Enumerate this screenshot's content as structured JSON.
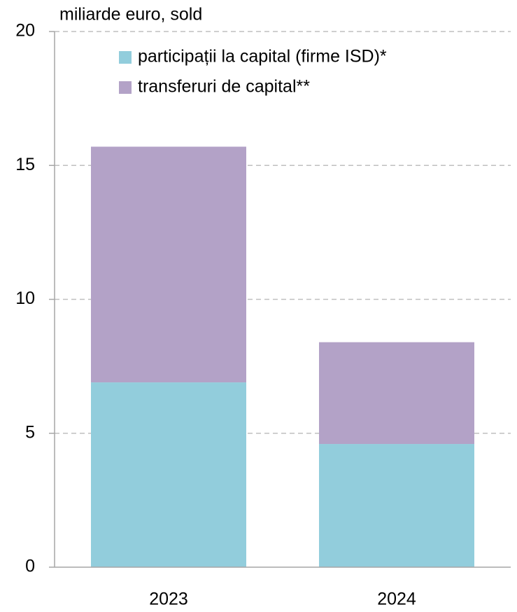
{
  "chart_data": {
    "type": "stacked_bar",
    "y_axis_label": "miliarde euro, sold",
    "categories": [
      "2023",
      "2024"
    ],
    "series": [
      {
        "name": "participații la capital (firme ISD)*",
        "color": "#92cddc",
        "values": [
          6.9,
          4.6
        ]
      },
      {
        "name": "transferuri de capital**",
        "color": "#b3a2c7",
        "values": [
          8.8,
          3.8
        ]
      }
    ],
    "ylim": [
      0,
      20
    ],
    "yticks": [
      0,
      5,
      10,
      15,
      20
    ],
    "grid": true
  }
}
